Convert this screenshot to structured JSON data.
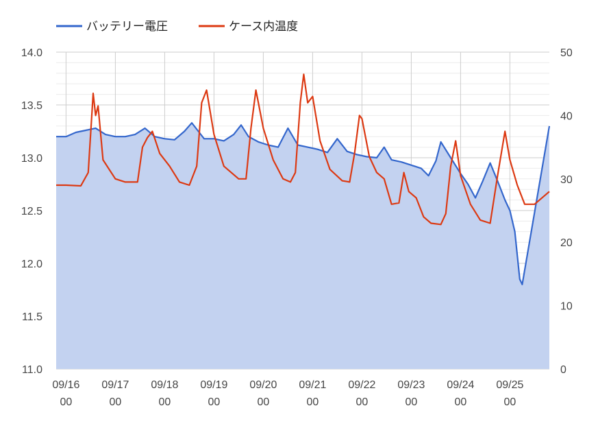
{
  "legend": {
    "voltage_label": "バッテリー電圧",
    "temperature_label": "ケース内温度"
  },
  "chart_data": {
    "type": "line",
    "x_ticks": [
      "09/16\n00",
      "09/17\n00",
      "09/18\n00",
      "09/19\n00",
      "09/20\n00",
      "09/21\n00",
      "09/22\n00",
      "09/23\n00",
      "09/24\n00",
      "09/25\n00"
    ],
    "x_range_days": [
      -0.2,
      9.8
    ],
    "y_left": {
      "ticks": [
        "11.0",
        "11.5",
        "12.0",
        "12.5",
        "13.0",
        "13.5",
        "14.0"
      ],
      "range": [
        11.0,
        14.0
      ]
    },
    "y_right": {
      "ticks": [
        "0",
        "10",
        "20",
        "30",
        "40",
        "50"
      ],
      "range": [
        0,
        50
      ]
    },
    "grid": true,
    "legend_position": "top-left",
    "colors": {
      "voltage_line": "#3366cc",
      "voltage_fill": "#c3d2f0",
      "temperature_line": "#dc3912"
    },
    "series": [
      {
        "name": "バッテリー電圧",
        "axis": "left",
        "type": "area",
        "points": [
          [
            -0.2,
            13.2
          ],
          [
            0.0,
            13.2
          ],
          [
            0.2,
            13.24
          ],
          [
            0.4,
            13.26
          ],
          [
            0.6,
            13.28
          ],
          [
            0.8,
            13.22
          ],
          [
            1.0,
            13.2
          ],
          [
            1.2,
            13.2
          ],
          [
            1.4,
            13.22
          ],
          [
            1.6,
            13.28
          ],
          [
            1.8,
            13.2
          ],
          [
            2.0,
            13.18
          ],
          [
            2.2,
            13.17
          ],
          [
            2.4,
            13.25
          ],
          [
            2.55,
            13.33
          ],
          [
            2.7,
            13.24
          ],
          [
            2.8,
            13.18
          ],
          [
            3.0,
            13.18
          ],
          [
            3.2,
            13.16
          ],
          [
            3.4,
            13.22
          ],
          [
            3.55,
            13.31
          ],
          [
            3.7,
            13.2
          ],
          [
            3.9,
            13.15
          ],
          [
            4.1,
            13.12
          ],
          [
            4.3,
            13.1
          ],
          [
            4.5,
            13.28
          ],
          [
            4.7,
            13.12
          ],
          [
            4.9,
            13.1
          ],
          [
            5.1,
            13.08
          ],
          [
            5.3,
            13.05
          ],
          [
            5.5,
            13.18
          ],
          [
            5.7,
            13.06
          ],
          [
            5.9,
            13.03
          ],
          [
            6.1,
            13.01
          ],
          [
            6.3,
            13.0
          ],
          [
            6.45,
            13.1
          ],
          [
            6.6,
            12.98
          ],
          [
            6.8,
            12.96
          ],
          [
            7.0,
            12.93
          ],
          [
            7.2,
            12.9
          ],
          [
            7.35,
            12.83
          ],
          [
            7.5,
            12.97
          ],
          [
            7.6,
            13.15
          ],
          [
            7.8,
            13.0
          ],
          [
            8.0,
            12.85
          ],
          [
            8.15,
            12.75
          ],
          [
            8.3,
            12.62
          ],
          [
            8.45,
            12.78
          ],
          [
            8.6,
            12.95
          ],
          [
            8.75,
            12.78
          ],
          [
            8.9,
            12.6
          ],
          [
            9.0,
            12.5
          ],
          [
            9.1,
            12.3
          ],
          [
            9.2,
            11.85
          ],
          [
            9.25,
            11.8
          ],
          [
            9.8,
            13.3
          ]
        ]
      },
      {
        "name": "ケース内温度",
        "axis": "right",
        "type": "line",
        "points": [
          [
            -0.2,
            29.0
          ],
          [
            0.0,
            29.0
          ],
          [
            0.3,
            28.9
          ],
          [
            0.45,
            31.0
          ],
          [
            0.55,
            43.5
          ],
          [
            0.6,
            40.0
          ],
          [
            0.65,
            41.5
          ],
          [
            0.75,
            33.0
          ],
          [
            1.0,
            30.0
          ],
          [
            1.2,
            29.5
          ],
          [
            1.45,
            29.5
          ],
          [
            1.55,
            35.0
          ],
          [
            1.65,
            36.5
          ],
          [
            1.75,
            37.5
          ],
          [
            1.9,
            34.0
          ],
          [
            2.1,
            32.0
          ],
          [
            2.3,
            29.5
          ],
          [
            2.5,
            29.0
          ],
          [
            2.65,
            32.0
          ],
          [
            2.75,
            42.0
          ],
          [
            2.85,
            44.0
          ],
          [
            3.0,
            37.0
          ],
          [
            3.2,
            32.0
          ],
          [
            3.5,
            30.0
          ],
          [
            3.65,
            30.0
          ],
          [
            3.75,
            38.0
          ],
          [
            3.85,
            44.0
          ],
          [
            4.0,
            38.0
          ],
          [
            4.2,
            33.0
          ],
          [
            4.4,
            30.0
          ],
          [
            4.55,
            29.5
          ],
          [
            4.65,
            31.0
          ],
          [
            4.75,
            42.0
          ],
          [
            4.82,
            46.5
          ],
          [
            4.9,
            42.0
          ],
          [
            5.0,
            43.0
          ],
          [
            5.15,
            36.0
          ],
          [
            5.35,
            31.5
          ],
          [
            5.6,
            29.7
          ],
          [
            5.75,
            29.5
          ],
          [
            5.85,
            34.0
          ],
          [
            5.95,
            40.0
          ],
          [
            6.0,
            39.5
          ],
          [
            6.15,
            33.5
          ],
          [
            6.3,
            31.0
          ],
          [
            6.45,
            30.0
          ],
          [
            6.6,
            26.0
          ],
          [
            6.75,
            26.2
          ],
          [
            6.85,
            31.0
          ],
          [
            6.95,
            28.0
          ],
          [
            7.1,
            27.0
          ],
          [
            7.25,
            24.0
          ],
          [
            7.4,
            23.0
          ],
          [
            7.6,
            22.8
          ],
          [
            7.7,
            24.5
          ],
          [
            7.8,
            32.0
          ],
          [
            7.9,
            36.0
          ],
          [
            8.0,
            30.5
          ],
          [
            8.2,
            26.0
          ],
          [
            8.4,
            23.5
          ],
          [
            8.6,
            23.0
          ],
          [
            8.75,
            30.5
          ],
          [
            8.9,
            37.5
          ],
          [
            9.0,
            33.0
          ],
          [
            9.15,
            29.0
          ],
          [
            9.3,
            26.0
          ],
          [
            9.5,
            26.0
          ],
          [
            9.8,
            28.0
          ]
        ]
      }
    ]
  }
}
